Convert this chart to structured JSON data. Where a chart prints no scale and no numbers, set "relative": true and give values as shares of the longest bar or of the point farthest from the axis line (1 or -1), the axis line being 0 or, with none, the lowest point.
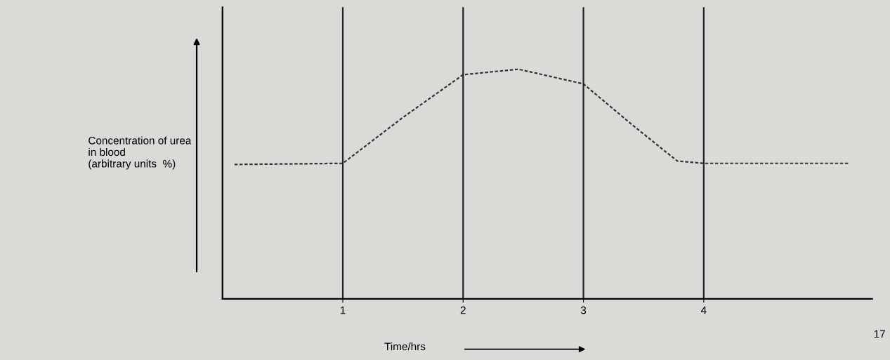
{
  "chart_data": {
    "type": "line",
    "relative": true,
    "xlabel": "Time/hrs",
    "ylabel": "Concentration of urea\nin blood\n(arbitrary units  %)",
    "x": [
      0.1,
      1,
      1.5,
      2,
      2.46,
      3,
      3.4,
      3.78,
      4,
      5.2
    ],
    "series": [
      {
        "color": "#333333",
        "values": [
          0.585,
          0.59,
          0.79,
          0.976,
          1.0,
          0.936,
          0.76,
          0.6,
          0.59,
          0.59
        ]
      }
    ],
    "xlim": [
      0,
      5.4
    ],
    "xticks": [
      1,
      2,
      3,
      4
    ],
    "ref_lines": [
      {
        "axis": "x",
        "value": 1,
        "color": "#222222"
      },
      {
        "axis": "x",
        "value": 2,
        "color": "#222222"
      },
      {
        "axis": "x",
        "value": 3,
        "color": "#222222"
      },
      {
        "axis": "x",
        "value": 4,
        "color": "#222222"
      }
    ],
    "line_style": "dashed",
    "marker": "none",
    "grid": false,
    "legend": false,
    "annotations": [
      "17"
    ]
  }
}
